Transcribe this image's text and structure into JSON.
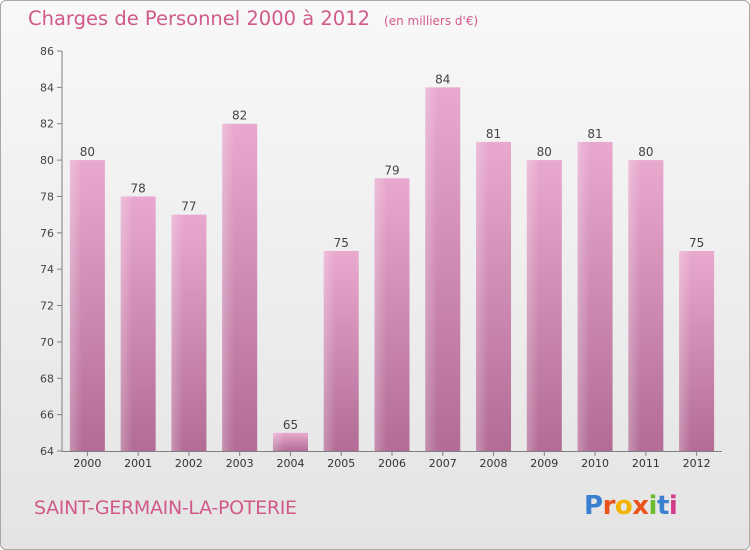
{
  "header": {
    "title": "Charges de Personnel 2000 à 2012",
    "subtitle": "(en milliers d'€)"
  },
  "footer": {
    "place": "SAINT-GERMAIN-LA-POTERIE",
    "logo_letters": [
      "P",
      "r",
      "o",
      "x",
      "i",
      "t",
      "i"
    ],
    "logo_colors": [
      "#3a7fd0",
      "#e8541b",
      "#f3b400",
      "#e8541b",
      "#6dbb2f",
      "#3a7fd0",
      "#d23b8c"
    ]
  },
  "colors": {
    "bar_top": "#e9a9cf",
    "bar_bottom": "#b26c95",
    "title": "#d05a8a",
    "axis": "#808080"
  },
  "chart_data": {
    "type": "bar",
    "title": "Charges de Personnel 2000 à 2012",
    "subtitle": "(en milliers d'€)",
    "categories": [
      "2000",
      "2001",
      "2002",
      "2003",
      "2004",
      "2005",
      "2006",
      "2007",
      "2008",
      "2009",
      "2010",
      "2011",
      "2012"
    ],
    "values": [
      80,
      78,
      77,
      82,
      65,
      75,
      79,
      84,
      81,
      80,
      81,
      80,
      75
    ],
    "ylim": [
      64,
      86
    ],
    "yticks": [
      64,
      66,
      68,
      70,
      72,
      74,
      76,
      78,
      80,
      82,
      84,
      86
    ],
    "grid": false,
    "legend": "none"
  }
}
